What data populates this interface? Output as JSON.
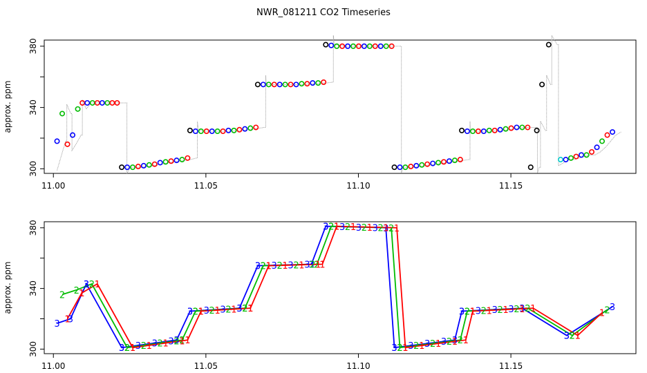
{
  "title": "NWR_081211  CO2 Timeseries",
  "colors": {
    "series_1": "#ff0000",
    "series_2": "#00bb00",
    "series_3": "#0000ff",
    "black": "#000000",
    "cyan": "#00cccc",
    "trace": "#999999"
  },
  "chart_data": [
    {
      "type": "scatter",
      "ylabel": "approx. ppm",
      "xlim": [
        10.997,
        11.191
      ],
      "ylim": [
        297,
        384
      ],
      "xticks": [
        "11.00",
        "11.05",
        "11.10",
        "11.15"
      ],
      "xtick_values": [
        11.0,
        11.05,
        11.1,
        11.15
      ],
      "yticks": [
        "300",
        "340",
        "380"
      ],
      "ytick_values": [
        300,
        340,
        380
      ],
      "grid": false,
      "points": [
        {
          "x": 11.0012,
          "y": 318,
          "c": "series_3"
        },
        {
          "x": 11.0029,
          "y": 336,
          "c": "series_2"
        },
        {
          "x": 11.0046,
          "y": 316,
          "c": "series_1"
        },
        {
          "x": 11.0063,
          "y": 322,
          "c": "series_3"
        },
        {
          "x": 11.008,
          "y": 339,
          "c": "series_2"
        },
        {
          "x": 11.0095,
          "y": 343,
          "c": "series_1"
        },
        {
          "x": 11.0111,
          "y": 343,
          "c": "series_3"
        },
        {
          "x": 11.0128,
          "y": 343,
          "c": "series_2"
        },
        {
          "x": 11.0144,
          "y": 343,
          "c": "series_1"
        },
        {
          "x": 11.016,
          "y": 343,
          "c": "series_3"
        },
        {
          "x": 11.0177,
          "y": 343,
          "c": "series_2"
        },
        {
          "x": 11.0193,
          "y": 343,
          "c": "series_1"
        },
        {
          "x": 11.0209,
          "y": 343,
          "c": "series_1"
        },
        {
          "x": 11.0224,
          "y": 301,
          "c": "black"
        },
        {
          "x": 11.0242,
          "y": 301,
          "c": "series_3"
        },
        {
          "x": 11.026,
          "y": 301,
          "c": "series_2"
        },
        {
          "x": 11.0278,
          "y": 301.5,
          "c": "series_1"
        },
        {
          "x": 11.0296,
          "y": 302,
          "c": "series_3"
        },
        {
          "x": 11.0314,
          "y": 302.5,
          "c": "series_2"
        },
        {
          "x": 11.0332,
          "y": 303,
          "c": "series_1"
        },
        {
          "x": 11.035,
          "y": 304,
          "c": "series_3"
        },
        {
          "x": 11.0368,
          "y": 304.5,
          "c": "series_2"
        },
        {
          "x": 11.0386,
          "y": 305,
          "c": "series_1"
        },
        {
          "x": 11.0404,
          "y": 305.5,
          "c": "series_3"
        },
        {
          "x": 11.0422,
          "y": 306,
          "c": "series_2"
        },
        {
          "x": 11.044,
          "y": 307,
          "c": "series_1"
        },
        {
          "x": 11.0448,
          "y": 325,
          "c": "black"
        },
        {
          "x": 11.0466,
          "y": 324.5,
          "c": "series_3"
        },
        {
          "x": 11.0484,
          "y": 324.5,
          "c": "series_2"
        },
        {
          "x": 11.0502,
          "y": 324.5,
          "c": "series_1"
        },
        {
          "x": 11.052,
          "y": 324.5,
          "c": "series_3"
        },
        {
          "x": 11.0538,
          "y": 324.5,
          "c": "series_2"
        },
        {
          "x": 11.0556,
          "y": 324.5,
          "c": "series_1"
        },
        {
          "x": 11.0574,
          "y": 325,
          "c": "series_3"
        },
        {
          "x": 11.0592,
          "y": 325,
          "c": "series_2"
        },
        {
          "x": 11.061,
          "y": 325.5,
          "c": "series_1"
        },
        {
          "x": 11.0628,
          "y": 326,
          "c": "series_3"
        },
        {
          "x": 11.0646,
          "y": 326.5,
          "c": "series_2"
        },
        {
          "x": 11.0664,
          "y": 327,
          "c": "series_1"
        },
        {
          "x": 11.067,
          "y": 355,
          "c": "black"
        },
        {
          "x": 11.0688,
          "y": 355,
          "c": "series_3"
        },
        {
          "x": 11.0706,
          "y": 355,
          "c": "series_2"
        },
        {
          "x": 11.0724,
          "y": 355,
          "c": "series_1"
        },
        {
          "x": 11.0742,
          "y": 355,
          "c": "series_3"
        },
        {
          "x": 11.076,
          "y": 355,
          "c": "series_2"
        },
        {
          "x": 11.0778,
          "y": 355,
          "c": "series_1"
        },
        {
          "x": 11.0796,
          "y": 355,
          "c": "series_3"
        },
        {
          "x": 11.0814,
          "y": 355.5,
          "c": "series_2"
        },
        {
          "x": 11.0832,
          "y": 355.5,
          "c": "series_1"
        },
        {
          "x": 11.085,
          "y": 356,
          "c": "series_3"
        },
        {
          "x": 11.0868,
          "y": 356,
          "c": "series_2"
        },
        {
          "x": 11.0886,
          "y": 356.5,
          "c": "series_1"
        },
        {
          "x": 11.0893,
          "y": 381,
          "c": "black"
        },
        {
          "x": 11.0911,
          "y": 380.5,
          "c": "series_3"
        },
        {
          "x": 11.0929,
          "y": 380,
          "c": "series_2"
        },
        {
          "x": 11.0947,
          "y": 380,
          "c": "series_1"
        },
        {
          "x": 11.0965,
          "y": 380,
          "c": "series_3"
        },
        {
          "x": 11.0983,
          "y": 380,
          "c": "series_2"
        },
        {
          "x": 11.1001,
          "y": 380,
          "c": "series_1"
        },
        {
          "x": 11.1019,
          "y": 380,
          "c": "series_3"
        },
        {
          "x": 11.1037,
          "y": 380,
          "c": "series_2"
        },
        {
          "x": 11.1055,
          "y": 380,
          "c": "series_1"
        },
        {
          "x": 11.1073,
          "y": 380,
          "c": "series_3"
        },
        {
          "x": 11.1091,
          "y": 380,
          "c": "series_2"
        },
        {
          "x": 11.1109,
          "y": 380,
          "c": "series_1"
        },
        {
          "x": 11.1118,
          "y": 301,
          "c": "black"
        },
        {
          "x": 11.1136,
          "y": 301,
          "c": "series_3"
        },
        {
          "x": 11.1154,
          "y": 301,
          "c": "series_2"
        },
        {
          "x": 11.1172,
          "y": 301.5,
          "c": "series_1"
        },
        {
          "x": 11.119,
          "y": 302,
          "c": "series_3"
        },
        {
          "x": 11.1208,
          "y": 302.5,
          "c": "series_2"
        },
        {
          "x": 11.1226,
          "y": 303,
          "c": "series_1"
        },
        {
          "x": 11.1244,
          "y": 303.5,
          "c": "series_3"
        },
        {
          "x": 11.1262,
          "y": 304,
          "c": "series_2"
        },
        {
          "x": 11.128,
          "y": 304.5,
          "c": "series_1"
        },
        {
          "x": 11.1298,
          "y": 305,
          "c": "series_3"
        },
        {
          "x": 11.1316,
          "y": 305.5,
          "c": "series_2"
        },
        {
          "x": 11.1334,
          "y": 306,
          "c": "series_1"
        },
        {
          "x": 11.1339,
          "y": 325,
          "c": "black"
        },
        {
          "x": 11.1357,
          "y": 324.5,
          "c": "series_3"
        },
        {
          "x": 11.1375,
          "y": 324.5,
          "c": "series_2"
        },
        {
          "x": 11.1393,
          "y": 324.5,
          "c": "series_1"
        },
        {
          "x": 11.1411,
          "y": 324.5,
          "c": "series_3"
        },
        {
          "x": 11.1429,
          "y": 325,
          "c": "series_2"
        },
        {
          "x": 11.1447,
          "y": 325,
          "c": "series_1"
        },
        {
          "x": 11.1465,
          "y": 325.5,
          "c": "series_3"
        },
        {
          "x": 11.1483,
          "y": 326,
          "c": "series_2"
        },
        {
          "x": 11.1501,
          "y": 326.5,
          "c": "series_1"
        },
        {
          "x": 11.1519,
          "y": 327,
          "c": "series_3"
        },
        {
          "x": 11.1537,
          "y": 327,
          "c": "series_2"
        },
        {
          "x": 11.1555,
          "y": 327,
          "c": "series_1"
        },
        {
          "x": 11.1565,
          "y": 301,
          "c": "black"
        },
        {
          "x": 11.1585,
          "y": 325,
          "c": "black"
        },
        {
          "x": 11.1602,
          "y": 355,
          "c": "black"
        },
        {
          "x": 11.1624,
          "y": 381,
          "c": "black"
        },
        {
          "x": 11.1663,
          "y": 306,
          "c": "cyan"
        },
        {
          "x": 11.168,
          "y": 306,
          "c": "series_3"
        },
        {
          "x": 11.1697,
          "y": 307,
          "c": "series_2"
        },
        {
          "x": 11.1714,
          "y": 308,
          "c": "series_1"
        },
        {
          "x": 11.1731,
          "y": 309,
          "c": "series_3"
        },
        {
          "x": 11.1748,
          "y": 309,
          "c": "series_2"
        },
        {
          "x": 11.1765,
          "y": 311,
          "c": "series_1"
        },
        {
          "x": 11.1782,
          "y": 314,
          "c": "series_3"
        },
        {
          "x": 11.1799,
          "y": 318,
          "c": "series_2"
        },
        {
          "x": 11.1816,
          "y": 322,
          "c": "series_1"
        },
        {
          "x": 11.1833,
          "y": 324,
          "c": "series_3"
        }
      ],
      "trace_dx": 0.0028
    },
    {
      "type": "line",
      "ylabel": "approx. ppm",
      "xlim": [
        10.997,
        11.191
      ],
      "ylim": [
        297,
        384
      ],
      "xticks": [
        "11.00",
        "11.05",
        "11.10",
        "11.15"
      ],
      "xtick_values": [
        11.0,
        11.05,
        11.1,
        11.15
      ],
      "yticks": [
        "300",
        "340",
        "380"
      ],
      "ytick_values": [
        300,
        340,
        380
      ],
      "grid": false,
      "series": [
        {
          "label": "3",
          "c": "series_3",
          "x": [
            11.0012,
            11.0056,
            11.0108,
            11.0224,
            11.0404,
            11.0448,
            11.061,
            11.067,
            11.0846,
            11.0893,
            11.109,
            11.1118,
            11.1316,
            11.1339,
            11.1537,
            11.1683,
            11.1833
          ],
          "y": [
            317,
            320,
            343,
            301,
            306,
            325,
            327,
            355,
            356,
            381,
            380,
            301,
            306,
            325,
            327,
            309,
            328
          ]
        },
        {
          "label": "2",
          "c": "series_2",
          "x": [
            11.0029,
            11.0076,
            11.0126,
            11.0242,
            11.0422,
            11.0466,
            11.0628,
            11.0688,
            11.0864,
            11.0911,
            11.1108,
            11.1136,
            11.1334,
            11.1357,
            11.1555,
            11.1701,
            11.1816
          ],
          "y": [
            336,
            339,
            343,
            301,
            306,
            325,
            327,
            355,
            356,
            381,
            380,
            301,
            306,
            325,
            327,
            309,
            326
          ]
        },
        {
          "label": "1",
          "c": "series_1",
          "x": [
            11.0046,
            11.0093,
            11.0144,
            11.026,
            11.044,
            11.0484,
            11.0646,
            11.0706,
            11.0882,
            11.0929,
            11.1126,
            11.1154,
            11.1352,
            11.1375,
            11.1573,
            11.1719,
            11.1799
          ],
          "y": [
            320,
            337,
            343,
            301,
            306,
            325,
            327,
            355,
            356,
            381,
            380,
            301,
            306,
            325,
            327,
            309,
            324
          ]
        }
      ]
    }
  ]
}
